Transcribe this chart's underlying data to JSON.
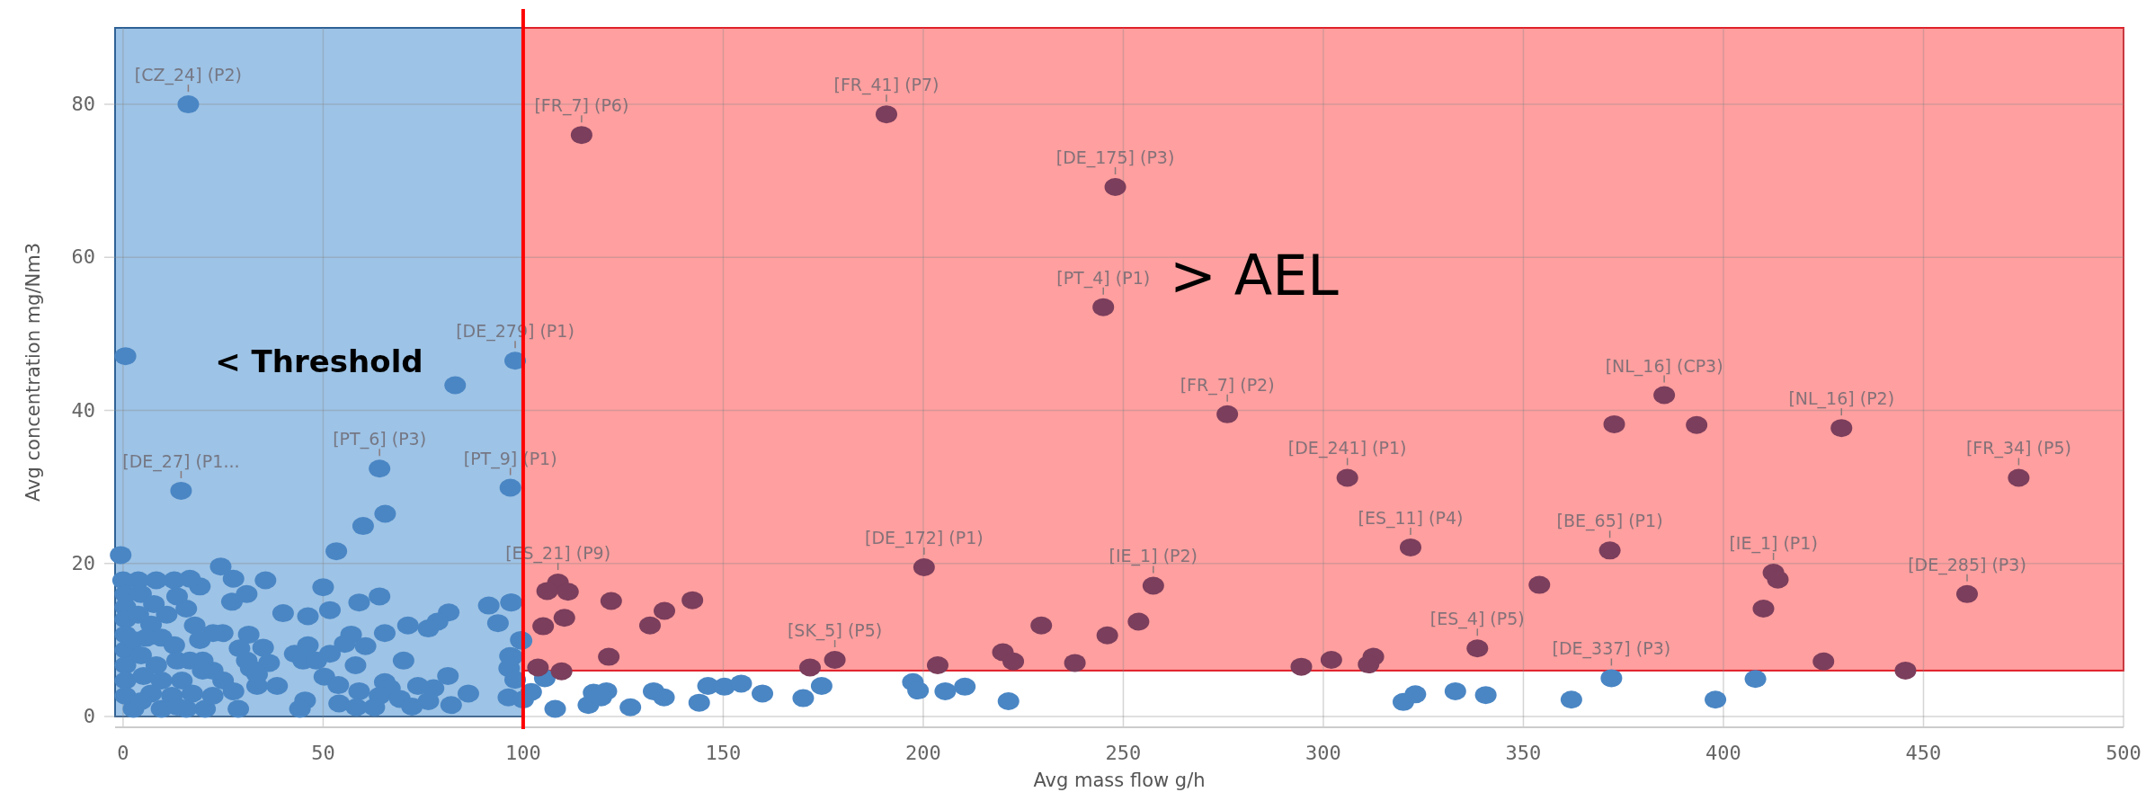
{
  "chart_data": {
    "type": "scatter",
    "xlabel": "Avg mass flow g/h",
    "ylabel": "Avg concentration mg/Nm3",
    "xlim": [
      -2,
      500
    ],
    "ylim": [
      0,
      90
    ],
    "xticks": [
      0,
      50,
      100,
      150,
      200,
      250,
      300,
      350,
      400,
      450,
      500
    ],
    "yticks": [
      0,
      20,
      40,
      60,
      80
    ],
    "grid": true,
    "marker": "circle",
    "bands": [
      {
        "axis": "y",
        "from": 6,
        "to": 90,
        "label": "> AEL",
        "color": "#ff9f9f"
      },
      {
        "axis": "x",
        "from": -2,
        "to": 100,
        "label": "< Threshold",
        "color": "#9dc3e6"
      }
    ],
    "ref_lines": [
      {
        "axis": "x",
        "value": 100,
        "color": "#ff0000"
      }
    ],
    "series": [
      {
        "color": "#4a86c4",
        "x": [
          16.3,
          0.6,
          98,
          83,
          14.5,
          64.1,
          96.8,
          60,
          65.5,
          53.3,
          -0.6,
          24.4,
          35.6,
          27.6,
          30.9,
          27.2,
          50,
          40,
          46.2,
          51.7,
          59,
          64.1,
          91.4,
          97,
          93.7,
          81.4,
          78.6,
          76.3,
          71.2,
          65.4,
          57,
          60.6,
          55.4,
          51.7,
          46.2,
          42.9,
          45,
          48.3,
          36.5,
          35,
          31.4,
          24.9,
          22.5,
          29.1,
          30.9,
          31.9,
          58.1,
          70.1,
          81.2,
          97.2,
          96.5,
          99.4,
          98,
          86.3,
          82,
          65.4,
          66.7,
          64.1,
          69.2,
          73.7,
          77.6,
          76.3,
          72.2,
          59,
          53.8,
          50.3,
          45.5,
          54,
          58.3,
          62.8,
          44.2,
          38.5,
          33.5,
          33.5,
          28.8,
          20.5,
          15.8,
          9.6,
          2.6,
          25,
          22.4,
          19.9,
          19.2,
          17.9,
          15.8,
          19.2,
          16.7,
          12.8,
          8.3,
          3.8,
          0,
          0.6,
          0.6,
          0.6,
          0.6,
          0.6,
          0.6,
          0.6,
          0.6,
          4.5,
          7.7,
          7,
          10.9,
          13.5,
          3.8,
          2.6,
          5.8,
          9.6,
          12.8,
          4.5,
          8.3,
          13.5,
          16.7,
          19.9,
          5.1,
          9.6,
          14.7,
          7,
          12.2,
          17.3,
          22.4,
          27.6,
          4.5,
          13.5,
          97,
          99.6,
          96.7,
          96.3,
          100,
          102,
          105.4,
          108,
          116.3,
          117.6,
          120.8,
          119.5,
          126.8,
          132.6,
          135.2,
          144,
          146.2,
          150.3,
          154.5,
          159.8,
          170,
          174.6,
          197.4,
          198.7,
          205.5,
          210.4,
          221.3,
          320,
          323,
          333,
          340.6,
          362,
          398,
          408,
          372
        ],
        "values": [
          80,
          47.1,
          46.5,
          43.3,
          29.5,
          32.4,
          29.9,
          24.9,
          26.5,
          21.6,
          21.1,
          19.6,
          17.8,
          18,
          16,
          15,
          16.9,
          13.5,
          13.1,
          13.9,
          14.9,
          15.7,
          14.5,
          14.9,
          12.2,
          13.6,
          12.4,
          11.5,
          11.9,
          10.9,
          10.7,
          9.2,
          9.5,
          8.2,
          9.3,
          8.2,
          7.3,
          7.3,
          7,
          9,
          10.7,
          10.9,
          10.9,
          8.9,
          7.3,
          6.3,
          6.7,
          7.3,
          5.3,
          7.8,
          6.3,
          10,
          4.8,
          3,
          1.5,
          4.5,
          3.7,
          2.7,
          2.3,
          4,
          3.7,
          2,
          1.3,
          3.3,
          4.1,
          5.2,
          2.1,
          1.7,
          1.2,
          1.2,
          1,
          4,
          4,
          5.5,
          1,
          1,
          1,
          1,
          1,
          4.7,
          6,
          7.3,
          10,
          11.9,
          14.1,
          17,
          18,
          17.8,
          17.8,
          17.8,
          17.8,
          16,
          14.3,
          12.7,
          10.7,
          8.7,
          6.7,
          4.7,
          2.7,
          16,
          14.7,
          12,
          13.3,
          15.7,
          13.3,
          10,
          10.3,
          10.3,
          9.3,
          8,
          6.7,
          7.3,
          7.3,
          6,
          5.3,
          4.7,
          4.7,
          3,
          2.7,
          3,
          2.7,
          3.3,
          2,
          1.3,
          14.9,
          9.9,
          7.9,
          2.5,
          2.2,
          3.2,
          5,
          1,
          1.5,
          3.1,
          3.3,
          2.5,
          1.2,
          3.3,
          2.5,
          1.8,
          4,
          3.9,
          4.3,
          3,
          2.4,
          4,
          4.5,
          3.4,
          3.3,
          3.9,
          2,
          1.9,
          2.9,
          3.3,
          2.8,
          2.2,
          2.2,
          4.9,
          5
        ]
      },
      {
        "color": "#7b3e5c",
        "x": [
          114.6,
          190.8,
          248,
          245,
          276,
          385.2,
          429.5,
          473.8,
          306,
          108.7,
          200.2,
          257.5,
          177.9,
          321.8,
          371.6,
          412.5,
          460.9,
          338.5,
          372.7,
          393.3,
          354,
          413.6,
          410,
          425,
          294.5,
          302,
          312.5,
          311.3,
          445.5,
          103.7,
          109.6,
          105,
          110.3,
          106,
          111.2,
          122,
          121.4,
          131.7,
          135.3,
          142.3,
          171.7,
          203.6,
          219.9,
          222.5,
          229.5,
          237.9,
          246,
          253.8
        ],
        "values": [
          76,
          78.7,
          69.2,
          53.5,
          39.5,
          42,
          37.7,
          31.2,
          31.2,
          17.5,
          19.5,
          17.1,
          7.4,
          22.1,
          21.7,
          18.8,
          16,
          8.9,
          38.2,
          38.1,
          17.2,
          17.9,
          14.1,
          7.2,
          6.5,
          7.4,
          7.8,
          6.8,
          6,
          6.4,
          5.9,
          11.8,
          12.9,
          16.4,
          16.3,
          15.1,
          7.8,
          11.9,
          13.8,
          15.2,
          6.4,
          6.7,
          8.4,
          7.2,
          11.9,
          7,
          10.6,
          12.4
        ]
      }
    ],
    "annotations": [
      {
        "text": "[CZ_24] (P2)",
        "x": 16.3,
        "y": 80
      },
      {
        "text": "[DE_279] (P1)",
        "x": 98,
        "y": 46.5
      },
      {
        "text": "[DE_27] (P1...",
        "x": 14.5,
        "y": 29.5
      },
      {
        "text": "[PT_6] (P3)",
        "x": 64.1,
        "y": 32.4
      },
      {
        "text": "[PT_9] (P1)",
        "x": 96.8,
        "y": 29.9
      },
      {
        "text": "[FR_7] (P6)",
        "x": 114.6,
        "y": 76
      },
      {
        "text": "[FR_41] (P7)",
        "x": 190.8,
        "y": 78.7
      },
      {
        "text": "[DE_175] (P3)",
        "x": 248,
        "y": 69.2
      },
      {
        "text": "[PT_4] (P1)",
        "x": 245,
        "y": 53.5
      },
      {
        "text": "[FR_7] (P2)",
        "x": 276,
        "y": 39.5
      },
      {
        "text": "[NL_16] (CP3)",
        "x": 385.2,
        "y": 42
      },
      {
        "text": "[NL_16] (P2)",
        "x": 429.5,
        "y": 37.7
      },
      {
        "text": "[FR_34] (P5)",
        "x": 473.8,
        "y": 31.2
      },
      {
        "text": "[DE_241] (P1)",
        "x": 306,
        "y": 31.2
      },
      {
        "text": "[ES_21] (P9)",
        "x": 108.7,
        "y": 17.5
      },
      {
        "text": "[DE_172] (P1)",
        "x": 200.2,
        "y": 19.5
      },
      {
        "text": "[IE_1] (P2)",
        "x": 257.5,
        "y": 17.1
      },
      {
        "text": "[SK_5] (P5)",
        "x": 177.9,
        "y": 7.4
      },
      {
        "text": "[ES_11] (P4)",
        "x": 321.8,
        "y": 22.1
      },
      {
        "text": "[BE_65] (P1)",
        "x": 371.6,
        "y": 21.7
      },
      {
        "text": "[IE_1] (P1)",
        "x": 412.5,
        "y": 18.8
      },
      {
        "text": "[DE_285] (P3)",
        "x": 460.9,
        "y": 16
      },
      {
        "text": "[ES_4] (P5)",
        "x": 338.5,
        "y": 8.9
      },
      {
        "text": "[DE_337] (P3)",
        "x": 372,
        "y": 5
      }
    ]
  }
}
